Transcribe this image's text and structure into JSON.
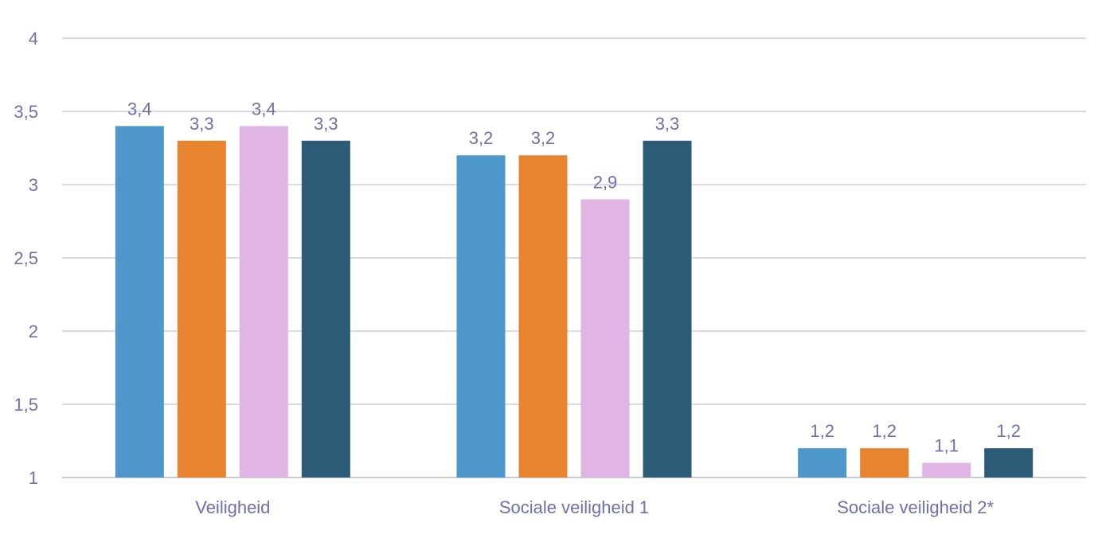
{
  "chart_data": {
    "type": "bar",
    "title": "",
    "xlabel": "",
    "ylabel": "",
    "ylim": [
      1,
      4
    ],
    "yticks": [
      "1",
      "1,5",
      "2",
      "2,5",
      "3",
      "3,5",
      "4"
    ],
    "ytick_values": [
      1,
      1.5,
      2,
      2.5,
      3,
      3.5,
      4
    ],
    "grid": true,
    "categories": [
      "Veiligheid",
      "Sociale veiligheid 1",
      "Sociale veiligheid 2*"
    ],
    "series": [
      {
        "color": "#4e97ca",
        "values": [
          3.4,
          3.2,
          1.2
        ],
        "labels": [
          "3,4",
          "3,2",
          "1,2"
        ]
      },
      {
        "color": "#e88330",
        "values": [
          3.3,
          3.2,
          1.2
        ],
        "labels": [
          "3,3",
          "3,2",
          "1,2"
        ]
      },
      {
        "color": "#e1b5e3",
        "values": [
          3.4,
          2.9,
          1.1
        ],
        "labels": [
          "3,4",
          "2,9",
          "1,1"
        ]
      },
      {
        "color": "#2c5b78",
        "values": [
          3.3,
          3.3,
          1.2
        ],
        "labels": [
          "3,3",
          "3,3",
          "1,2"
        ]
      }
    ]
  }
}
